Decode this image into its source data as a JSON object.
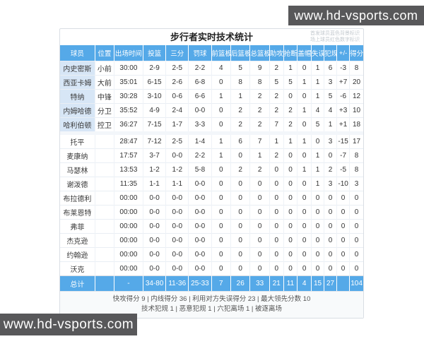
{
  "watermark": {
    "text": "www.hd-vsports.com"
  },
  "table": {
    "title": "步行者实时技术统计",
    "legend": [
      "首发球员蓝色背景标识",
      "场上球员红色数字标识"
    ],
    "columns": [
      "球员",
      "位置",
      "出场时间",
      "投篮",
      "三分",
      "罚球",
      "前篮板",
      "后篮板",
      "总篮板",
      "助攻",
      "抢断",
      "盖帽",
      "失误",
      "犯规",
      "+/-",
      "得分"
    ],
    "rows": [
      {
        "name": "内史密斯",
        "starter": true,
        "on_court": false,
        "cells": [
          "小前",
          "30:00",
          "2-9",
          "2-5",
          "2-2",
          "4",
          "5",
          "9",
          "2",
          "1",
          "0",
          "1",
          "6",
          "-3",
          "8"
        ]
      },
      {
        "name": "西亚卡姆",
        "starter": true,
        "on_court": true,
        "cells": [
          "大前",
          "35:01",
          "6-15",
          "2-6",
          "6-8",
          "0",
          "8",
          "8",
          "5",
          "5",
          "1",
          "1",
          "3",
          "+7",
          "20"
        ]
      },
      {
        "name": "特纳",
        "starter": true,
        "on_court": false,
        "cells": [
          "中锋",
          "30:28",
          "3-10",
          "0-6",
          "6-6",
          "1",
          "1",
          "2",
          "2",
          "0",
          "0",
          "1",
          "5",
          "-6",
          "12"
        ]
      },
      {
        "name": "内姆哈德",
        "starter": true,
        "on_court": true,
        "cells": [
          "分卫",
          "35:52",
          "4-9",
          "2-4",
          "0-0",
          "0",
          "2",
          "2",
          "2",
          "2",
          "1",
          "4",
          "4",
          "+3",
          "10"
        ]
      },
      {
        "name": "哈利伯顿",
        "starter": true,
        "on_court": true,
        "cells": [
          "控卫",
          "36:27",
          "7-15",
          "1-7",
          "3-3",
          "0",
          "2",
          "2",
          "7",
          "2",
          "0",
          "5",
          "1",
          "+1",
          "18"
        ]
      },
      {
        "name": "托平",
        "starter": false,
        "on_court": true,
        "cells": [
          "",
          "28:47",
          "7-12",
          "2-5",
          "1-4",
          "1",
          "6",
          "7",
          "1",
          "1",
          "1",
          "0",
          "3",
          "-15",
          "17"
        ]
      },
      {
        "name": "麦康纳",
        "starter": false,
        "on_court": false,
        "cells": [
          "",
          "17:57",
          "3-7",
          "0-0",
          "2-2",
          "1",
          "0",
          "1",
          "2",
          "0",
          "0",
          "1",
          "0",
          "-7",
          "8"
        ]
      },
      {
        "name": "马瑟林",
        "starter": false,
        "on_court": true,
        "cells": [
          "",
          "13:53",
          "1-2",
          "1-2",
          "5-8",
          "0",
          "2",
          "2",
          "0",
          "0",
          "1",
          "1",
          "2",
          "-5",
          "8"
        ]
      },
      {
        "name": "谢泼德",
        "starter": false,
        "on_court": false,
        "cells": [
          "",
          "11:35",
          "1-1",
          "1-1",
          "0-0",
          "0",
          "0",
          "0",
          "0",
          "0",
          "0",
          "1",
          "3",
          "-10",
          "3"
        ]
      },
      {
        "name": "布拉德利",
        "starter": false,
        "on_court": false,
        "cells": [
          "",
          "00:00",
          "0-0",
          "0-0",
          "0-0",
          "0",
          "0",
          "0",
          "0",
          "0",
          "0",
          "0",
          "0",
          "0",
          "0"
        ]
      },
      {
        "name": "布莱恩特",
        "starter": false,
        "on_court": false,
        "cells": [
          "",
          "00:00",
          "0-0",
          "0-0",
          "0-0",
          "0",
          "0",
          "0",
          "0",
          "0",
          "0",
          "0",
          "0",
          "0",
          "0"
        ]
      },
      {
        "name": "弗菲",
        "starter": false,
        "on_court": false,
        "cells": [
          "",
          "00:00",
          "0-0",
          "0-0",
          "0-0",
          "0",
          "0",
          "0",
          "0",
          "0",
          "0",
          "0",
          "0",
          "0",
          "0"
        ]
      },
      {
        "name": "杰克逊",
        "starter": false,
        "on_court": false,
        "cells": [
          "",
          "00:00",
          "0-0",
          "0-0",
          "0-0",
          "0",
          "0",
          "0",
          "0",
          "0",
          "0",
          "0",
          "0",
          "0",
          "0"
        ]
      },
      {
        "name": "约翰逊",
        "starter": false,
        "on_court": false,
        "cells": [
          "",
          "00:00",
          "0-0",
          "0-0",
          "0-0",
          "0",
          "0",
          "0",
          "0",
          "0",
          "0",
          "0",
          "0",
          "0",
          "0"
        ]
      },
      {
        "name": "沃克",
        "starter": false,
        "on_court": false,
        "cells": [
          "",
          "00:00",
          "0-0",
          "0-0",
          "0-0",
          "0",
          "0",
          "0",
          "0",
          "0",
          "0",
          "0",
          "0",
          "0",
          "0"
        ]
      }
    ],
    "total": {
      "label": "总计",
      "cells": [
        "",
        "-",
        "34-80",
        "11-36",
        "25-33",
        "7",
        "26",
        "33",
        "21",
        "11",
        "4",
        "15",
        "27",
        "",
        "104"
      ]
    },
    "summary": [
      "快攻得分 9 | 内线得分 36 | 利用对方失误得分 23 | 最大领先分数 10",
      "技术犯规 1 | 恶意犯规 1 | 六犯离场 1 | 被逐离场"
    ]
  },
  "colors": {
    "header_blue": "#55a9e8",
    "starter_row_bg": "#d7e6f6",
    "on_court_red": "#e0685e",
    "watermark_bg": "#58585a"
  }
}
